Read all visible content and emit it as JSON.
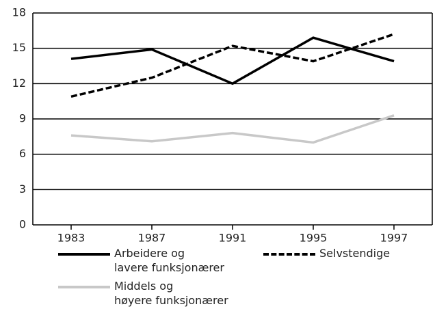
{
  "chart_data": {
    "type": "line",
    "categories": [
      "1983",
      "1987",
      "1991",
      "1995",
      "1997"
    ],
    "series": [
      {
        "name": "Arbeidere og\nlavere funksjonærer",
        "color": "#000000",
        "dash": false,
        "values": [
          14.1,
          14.9,
          12.0,
          15.9,
          13.9
        ]
      },
      {
        "name": "Selvstendige",
        "color": "#000000",
        "dash": true,
        "values": [
          10.9,
          12.5,
          15.2,
          13.9,
          16.2
        ]
      },
      {
        "name": "Middels og\nhøyere funksjonærer",
        "color": "#c8c8c8",
        "dash": false,
        "values": [
          7.6,
          7.1,
          7.8,
          7.0,
          9.3
        ]
      }
    ],
    "ylim": [
      0,
      18
    ],
    "yticks": [
      0,
      3,
      6,
      9,
      12,
      15,
      18
    ],
    "grid": true
  }
}
